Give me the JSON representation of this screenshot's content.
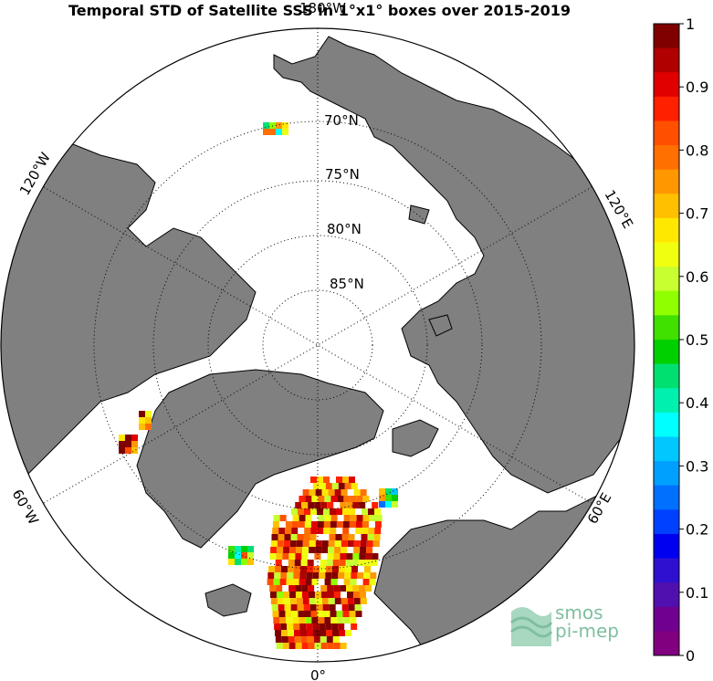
{
  "title": "Temporal STD of Satellite SSS in 1°x1° boxes over 2015-2019",
  "map": {
    "projection": "north-polar-stereographic",
    "colors": {
      "land": "#808080",
      "ocean": "#ffffff",
      "coast": "#000000",
      "grid": "#000000"
    },
    "lat_labels": [
      "70°N",
      "75°N",
      "80°N",
      "85°N"
    ],
    "lon_labels": {
      "top": "180°W",
      "left_upper": "120°W",
      "left_lower": "60°W",
      "bottom": "0°",
      "right_upper": "120°E",
      "right_lower": "60°E"
    }
  },
  "colorbar": {
    "ticks": [
      "1",
      "0.9",
      "0.8",
      "0.7",
      "0.6",
      "0.5",
      "0.4",
      "0.3",
      "0.2",
      "0.1",
      "0"
    ],
    "range": [
      0,
      1
    ],
    "colors": [
      "#800000",
      "#b00000",
      "#e00000",
      "#ff2000",
      "#ff5000",
      "#ff7000",
      "#ff9800",
      "#ffc000",
      "#ffe800",
      "#f0ff10",
      "#c8ff30",
      "#90ff00",
      "#40e000",
      "#00d000",
      "#00e070",
      "#00f0b0",
      "#00ffff",
      "#00c8ff",
      "#00a0ff",
      "#0070ff",
      "#0040ff",
      "#0000f0",
      "#3010d0",
      "#5010b0",
      "#700090",
      "#800080"
    ]
  },
  "logo": {
    "line1": "smos",
    "line2": "pi-mep"
  }
}
